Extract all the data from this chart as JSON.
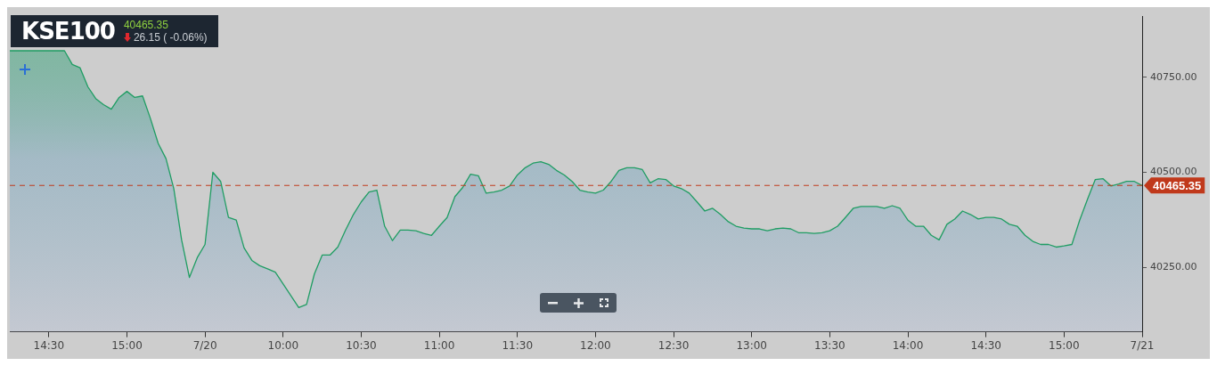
{
  "chart_data": {
    "type": "area",
    "title": "KSE100",
    "subtitle": "40465.35",
    "annotations": [
      "26.15 ( -0.06%)"
    ],
    "categories": [
      null,
      null,
      null,
      null,
      null,
      "14:30",
      null,
      null,
      null,
      null,
      null,
      null,
      null,
      null,
      null,
      "15:00",
      null,
      null,
      null,
      null,
      null,
      null,
      null,
      null,
      null,
      "7/20",
      null,
      null,
      null,
      null,
      null,
      null,
      null,
      null,
      null,
      "10:00",
      null,
      null,
      null,
      null,
      null,
      null,
      null,
      null,
      null,
      "10:30",
      null,
      null,
      null,
      null,
      null,
      null,
      null,
      null,
      null,
      "11:00",
      null,
      null,
      null,
      null,
      null,
      null,
      null,
      null,
      null,
      "11:30",
      null,
      null,
      null,
      null,
      null,
      null,
      null,
      null,
      null,
      "12:00",
      null,
      null,
      null,
      null,
      null,
      null,
      null,
      null,
      null,
      "12:30",
      null,
      null,
      null,
      null,
      null,
      null,
      null,
      null,
      null,
      "13:00",
      null,
      null,
      null,
      null,
      null,
      null,
      null,
      null,
      null,
      "13:30",
      null,
      null,
      null,
      null,
      null,
      null,
      null,
      null,
      null,
      "14:00",
      null,
      null,
      null,
      null,
      null,
      null,
      null,
      null,
      null,
      "14:30",
      null,
      null,
      null,
      null,
      null,
      null,
      null,
      null,
      null,
      "15:00",
      null,
      null,
      null,
      null,
      null,
      null,
      null,
      null,
      null,
      "7/21"
    ],
    "series": [
      {
        "color": "#1f9d63",
        "values": [
          40820,
          null,
          null,
          null,
          null,
          null,
          null,
          40820,
          40784,
          40775,
          40725,
          40694,
          40678,
          40666,
          40697,
          40713,
          40697,
          40701,
          40642,
          40576,
          40536,
          40457,
          40322,
          40223,
          40275,
          40310,
          40500,
          40476,
          40381,
          40374,
          40301,
          40268,
          40254,
          40246,
          40237,
          40206,
          40175,
          40144,
          40152,
          40232,
          40282,
          40282,
          40303,
          40348,
          40389,
          40422,
          40448,
          40453,
          40358,
          40320,
          40348,
          40348,
          40346,
          40339,
          40334,
          40358,
          40381,
          40436,
          40460,
          40495,
          40491,
          40445,
          40448,
          40453,
          40464,
          40493,
          40512,
          40524,
          40528,
          40521,
          40505,
          40493,
          40476,
          40453,
          40448,
          40445,
          40453,
          40476,
          40505,
          40512,
          40512,
          40507,
          40472,
          40483,
          40481,
          40464,
          40457,
          40445,
          40422,
          40398,
          40405,
          40389,
          40370,
          40358,
          40353,
          40351,
          40351,
          40346,
          40351,
          40353,
          40351,
          40341,
          40341,
          40339,
          40341,
          40346,
          40358,
          40381,
          40405,
          40410,
          40410,
          40410,
          40405,
          40412,
          40405,
          40374,
          40358,
          40358,
          40334,
          40322,
          40363,
          40377,
          40398,
          40389,
          40377,
          40381,
          40381,
          40377,
          40363,
          40358,
          40334,
          40318,
          40310,
          40310,
          40303,
          40306,
          40310,
          40374,
          40429,
          40481,
          40483,
          40464,
          40469,
          40476,
          40476,
          40465
        ]
      }
    ],
    "ylim": [
      40080,
      40910
    ],
    "yticks": [
      {
        "value": 40250,
        "label": "40250.00"
      },
      {
        "value": 40500,
        "label": "40500.00"
      },
      {
        "value": 40750,
        "label": "40750.00"
      }
    ],
    "ref_lines": [
      {
        "axis": "y",
        "value": 40465.35,
        "label": "40465.35",
        "color": "#c0391b",
        "line_style": "dashed"
      }
    ],
    "marker": "none",
    "line_style": "solid"
  }
}
